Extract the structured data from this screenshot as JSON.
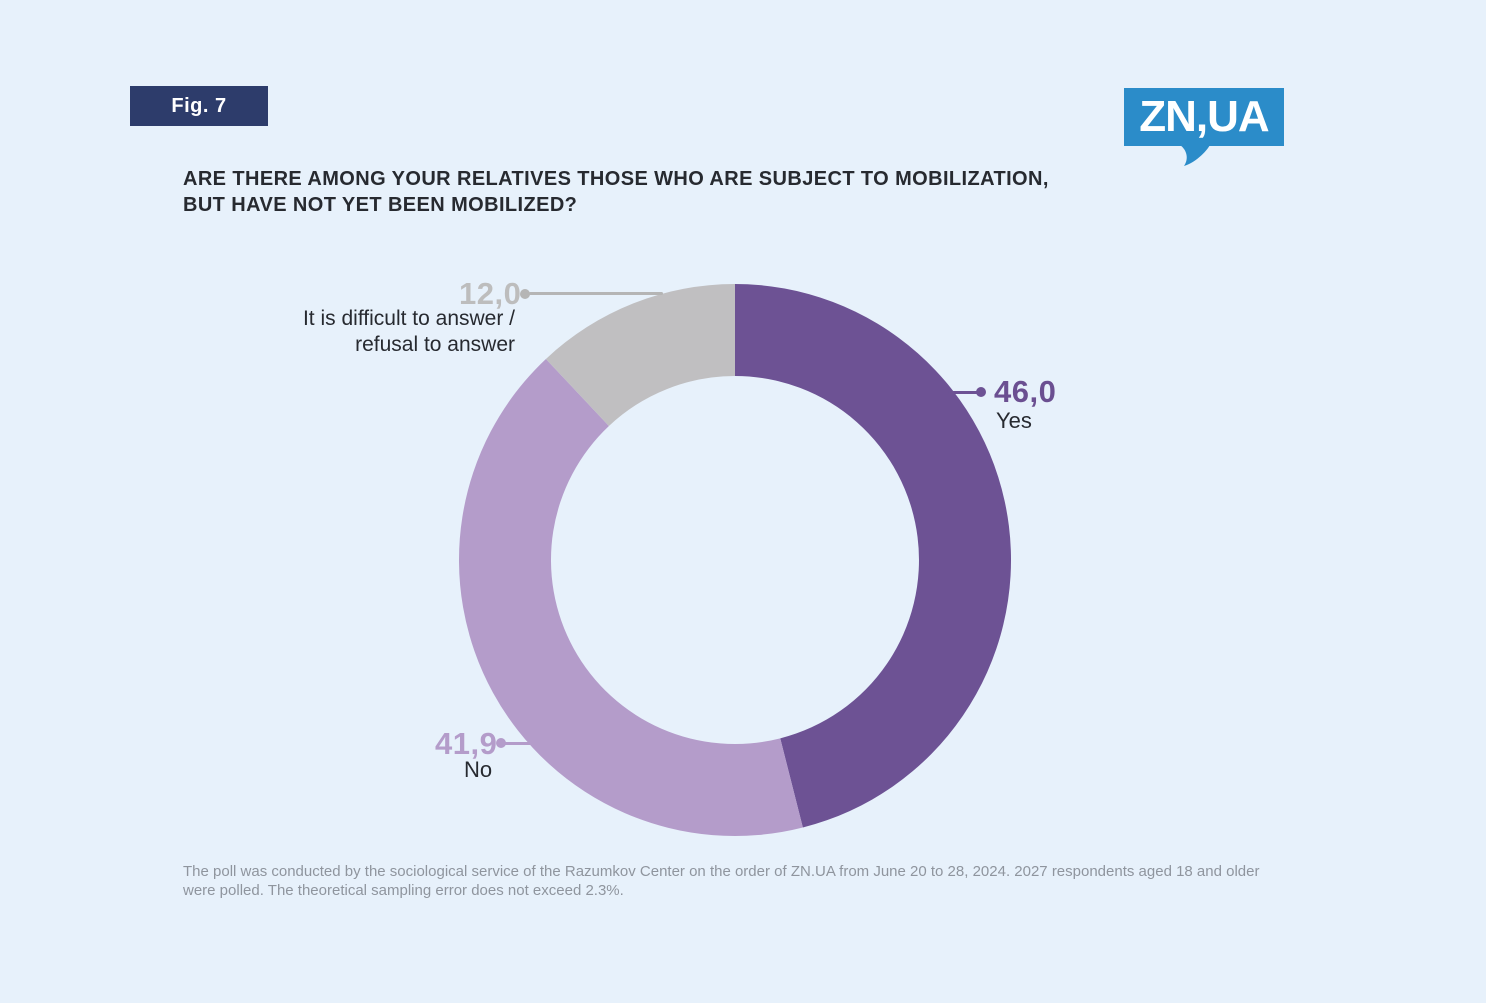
{
  "figure": {
    "label": "Fig. 7"
  },
  "logo": {
    "text": "ZN,UA",
    "color": "#2b8cc9"
  },
  "header": {
    "title_lines": [
      "ARE THERE AMONG YOUR RELATIVES THOSE WHO ARE SUBJECT TO MOBILIZATION,",
      "BUT HAVE NOT YET BEEN MOBILIZED?"
    ]
  },
  "chart_data": {
    "type": "pie",
    "subtype": "donut",
    "title": "Are there among your relatives those who are subject to mobilization, but have not yet been mobilized?",
    "units": "percent",
    "start_angle_deg": 0,
    "direction": "clockwise",
    "legend_position": "callouts",
    "slices": [
      {
        "id": "yes",
        "label": "Yes",
        "value": 46.0,
        "display_value": "46,0",
        "color": "#6d5294"
      },
      {
        "id": "no",
        "label": "No",
        "value": 41.9,
        "display_value": "41,9",
        "color": "#b49cca"
      },
      {
        "id": "difficult",
        "label": "It is difficult to answer / refusal to answer",
        "label_lines": [
          "It is difficult to answer /",
          "refusal to answer"
        ],
        "value": 12.0,
        "display_value": "12,0",
        "color": "#c0bfc1"
      }
    ]
  },
  "footnote": {
    "text": "The poll was conducted by the sociological service of the Razumkov Center on the order of ZN.UA from June 20 to 28, 2024. 2027 respondents aged 18 and older were polled. The theoretical sampling error does not exceed 2.3%."
  },
  "colors": {
    "background": "#e7f1fb",
    "badge_bg": "#2d3c6b",
    "badge_text": "#ffffff",
    "title_text": "#272a30",
    "footnote_text": "#8f959e",
    "leader_gray": "#b5b5b5"
  }
}
